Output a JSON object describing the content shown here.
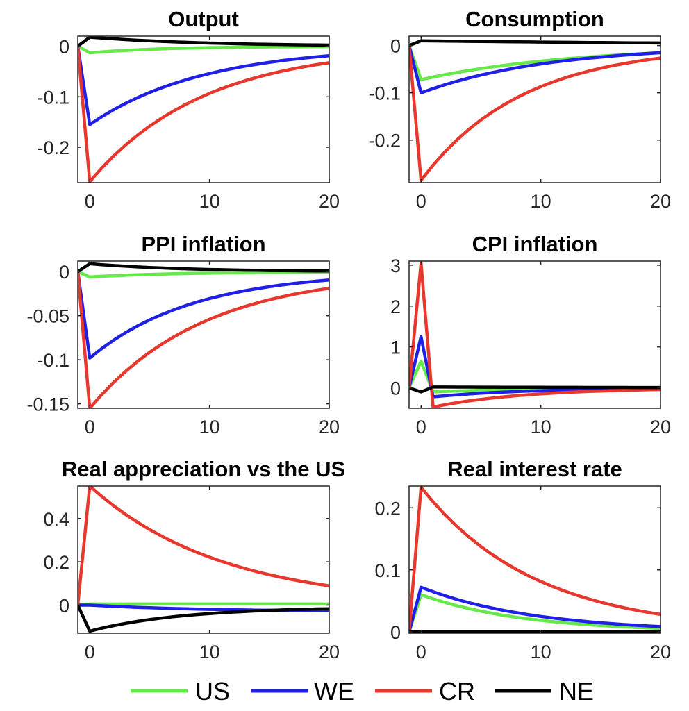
{
  "chart_data": [
    {
      "type": "line",
      "title": "Output",
      "xlim": [
        -1,
        20
      ],
      "ylim": [
        -0.27,
        0.02
      ],
      "xticks": [
        0,
        10,
        20
      ],
      "xtick_labels": [
        "0",
        "10",
        "20"
      ],
      "yticks": [
        0,
        -0.1,
        -0.2
      ],
      "ytick_labels": [
        "0",
        "-0.1",
        "-0.2"
      ],
      "series": [
        {
          "name": "US",
          "impact": -0.013,
          "decay": 0.86,
          "start": 0
        },
        {
          "name": "WE",
          "impact": -0.155,
          "decay": 0.9,
          "start": 0
        },
        {
          "name": "CR",
          "impact": -0.268,
          "decay": 0.9,
          "start": 0
        },
        {
          "name": "NE",
          "impact": 0.018,
          "decay": 0.9,
          "start": 0
        }
      ]
    },
    {
      "type": "line",
      "title": "Consumption",
      "xlim": [
        -1,
        20
      ],
      "ylim": [
        -0.29,
        0.02
      ],
      "xticks": [
        0,
        10,
        20
      ],
      "xtick_labels": [
        "0",
        "10",
        "20"
      ],
      "yticks": [
        0,
        -0.1,
        -0.2
      ],
      "ytick_labels": [
        "0",
        "-0.1",
        "-0.2"
      ],
      "series": [
        {
          "name": "US",
          "impact": -0.072,
          "decay": 0.925,
          "start": 0
        },
        {
          "name": "WE",
          "impact": -0.1,
          "decay": 0.91,
          "start": 0
        },
        {
          "name": "CR",
          "impact": -0.285,
          "decay": 0.888,
          "start": 0
        },
        {
          "name": "NE",
          "impact": 0.01,
          "decay": 0.97,
          "start": 0
        }
      ]
    },
    {
      "type": "line",
      "title": "PPI inflation",
      "xlim": [
        -1,
        20
      ],
      "ylim": [
        -0.155,
        0.012
      ],
      "xticks": [
        0,
        10,
        20
      ],
      "xtick_labels": [
        "0",
        "10",
        "20"
      ],
      "yticks": [
        0,
        -0.05,
        -0.1,
        -0.15
      ],
      "ytick_labels": [
        "0",
        "-0.05",
        "-0.1",
        "-0.15"
      ],
      "series": [
        {
          "name": "US",
          "impact": -0.006,
          "decay": 0.88,
          "start": 0
        },
        {
          "name": "WE",
          "impact": -0.098,
          "decay": 0.89,
          "start": 0
        },
        {
          "name": "CR",
          "impact": -0.155,
          "decay": 0.9,
          "start": 0
        },
        {
          "name": "NE",
          "impact": 0.009,
          "decay": 0.88,
          "start": 0
        }
      ]
    },
    {
      "type": "line",
      "title": "CPI inflation",
      "xlim": [
        -1,
        20
      ],
      "ylim": [
        -0.5,
        3.1
      ],
      "xticks": [
        0,
        10,
        20
      ],
      "xtick_labels": [
        "0",
        "10",
        "20"
      ],
      "yticks": [
        3,
        2,
        1,
        0
      ],
      "ytick_labels": [
        "3",
        "2",
        "1",
        "0"
      ],
      "series": [
        {
          "name": "US",
          "impact": 0.65,
          "after": -0.1,
          "decay": 0.88,
          "start": 0
        },
        {
          "name": "WE",
          "impact": 1.25,
          "after": -0.22,
          "decay": 0.88,
          "start": 0
        },
        {
          "name": "CR",
          "impact": 3.05,
          "after": -0.47,
          "decay": 0.88,
          "start": 0
        },
        {
          "name": "NE",
          "impact": -0.1,
          "after": 0.02,
          "decay": 0.95,
          "start": 0
        }
      ]
    },
    {
      "type": "line",
      "title": "Real appreciation vs the US",
      "xlim": [
        -1,
        20
      ],
      "ylim": [
        -0.13,
        0.55
      ],
      "xticks": [
        0,
        10,
        20
      ],
      "xtick_labels": [
        "0",
        "10",
        "20"
      ],
      "yticks": [
        0.4,
        0.2,
        0
      ],
      "ytick_labels": [
        "0.4",
        "0.2",
        "0"
      ],
      "series": [
        {
          "name": "US",
          "impact": 0.005,
          "decay": 1.0,
          "start": 0
        },
        {
          "name": "WE",
          "impact": 0.0,
          "target": -0.03,
          "decay": 0.9,
          "start": 0
        },
        {
          "name": "CR",
          "impact": 0.55,
          "decay": 0.913,
          "start": 0
        },
        {
          "name": "NE",
          "impact": -0.12,
          "decay": 0.88,
          "target": -0.008,
          "start": 0
        }
      ]
    },
    {
      "type": "line",
      "title": "Real interest rate",
      "xlim": [
        -1,
        20
      ],
      "ylim": [
        -0.002,
        0.235
      ],
      "xticks": [
        0,
        10,
        20
      ],
      "xtick_labels": [
        "0",
        "10",
        "20"
      ],
      "yticks": [
        0.2,
        0.1,
        0
      ],
      "ytick_labels": [
        "0.2",
        "0.1",
        "0"
      ],
      "series": [
        {
          "name": "US",
          "impact": 0.06,
          "decay": 0.89,
          "start": 0
        },
        {
          "name": "WE",
          "impact": 0.072,
          "decay": 0.9,
          "start": 0
        },
        {
          "name": "CR",
          "impact": 0.233,
          "decay": 0.9,
          "start": 0
        },
        {
          "name": "NE",
          "impact": 0.0,
          "decay": 0.9,
          "start": 0
        }
      ]
    }
  ],
  "legend": {
    "placement": "bottom",
    "entries": [
      {
        "name": "US",
        "color": "#66e84a"
      },
      {
        "name": "WE",
        "color": "#1f1fe6"
      },
      {
        "name": "CR",
        "color": "#e8372c"
      },
      {
        "name": "NE",
        "color": "#000000"
      }
    ]
  },
  "colors": {
    "US": "#66e84a",
    "WE": "#1f1fe6",
    "CR": "#e8372c",
    "NE": "#000000"
  }
}
